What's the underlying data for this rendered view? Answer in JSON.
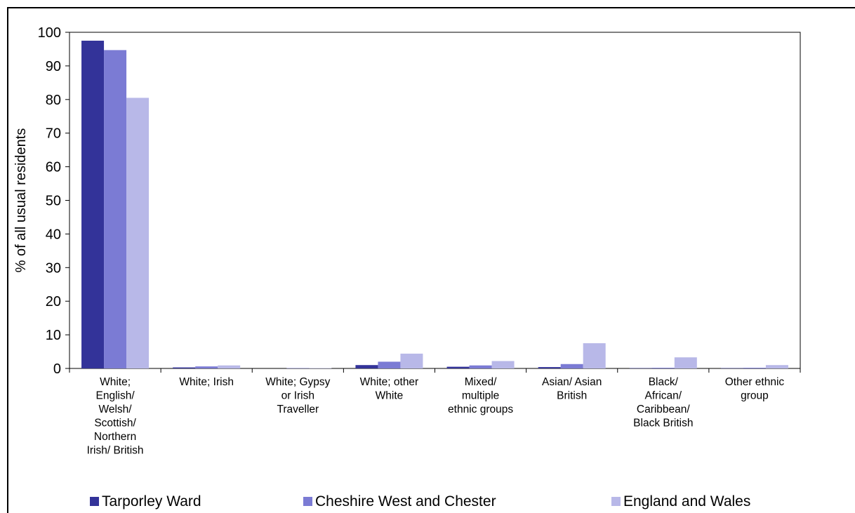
{
  "chart_data": {
    "type": "bar",
    "title": "",
    "ylabel": "% of all usual residents",
    "xlabel": "",
    "ylim": [
      0,
      100
    ],
    "yticks": [
      0,
      10,
      20,
      30,
      40,
      50,
      60,
      70,
      80,
      90,
      100
    ],
    "grid": false,
    "legend_position": "bottom",
    "categories": [
      "White; English/ Welsh/ Scottish/ Northern Irish/ British",
      "White; Irish",
      "White; Gypsy or Irish Traveller",
      "White; other White",
      "Mixed/ multiple ethnic groups",
      "Asian/ Asian British",
      "Black/ African/ Caribbean/ Black British",
      "Other ethnic group"
    ],
    "category_lines": [
      [
        "White;",
        "English/",
        "Welsh/",
        "Scottish/",
        "Northern",
        "Irish/ British"
      ],
      [
        "White; Irish"
      ],
      [
        "White; Gypsy",
        "or Irish",
        "Traveller"
      ],
      [
        "White; other",
        "White"
      ],
      [
        "Mixed/",
        "multiple",
        "ethnic groups"
      ],
      [
        "Asian/ Asian",
        "British"
      ],
      [
        "Black/",
        "African/",
        "Caribbean/",
        "Black British"
      ],
      [
        "Other ethnic",
        "group"
      ]
    ],
    "series": [
      {
        "name": "Tarporley Ward",
        "color": "#333399",
        "values": [
          97.5,
          0.3,
          0.0,
          1.0,
          0.5,
          0.4,
          0.1,
          0.1
        ]
      },
      {
        "name": "Cheshire West and Chester",
        "color": "#7b7bd4",
        "values": [
          94.7,
          0.6,
          0.1,
          2.0,
          0.9,
          1.3,
          0.2,
          0.2
        ]
      },
      {
        "name": "England and Wales",
        "color": "#b8b8e8",
        "values": [
          80.5,
          0.9,
          0.1,
          4.4,
          2.2,
          7.5,
          3.3,
          1.0
        ]
      }
    ]
  }
}
